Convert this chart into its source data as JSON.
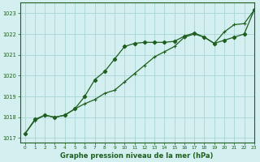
{
  "title": "Graphe pression niveau de la mer (hPa)",
  "background_color": "#d4efef",
  "grid_color": "#a8d4d4",
  "line_color": "#1e5e1e",
  "xlim": [
    -0.5,
    23
  ],
  "ylim": [
    1016.8,
    1023.5
  ],
  "yticks": [
    1017,
    1018,
    1019,
    1020,
    1021,
    1022,
    1023
  ],
  "xticks": [
    0,
    1,
    2,
    3,
    4,
    5,
    6,
    7,
    8,
    9,
    10,
    11,
    12,
    13,
    14,
    15,
    16,
    17,
    18,
    19,
    20,
    21,
    22,
    23
  ],
  "line1_x": [
    0,
    1,
    2,
    3,
    4,
    5,
    6,
    7,
    8,
    9,
    10,
    11,
    12,
    13,
    14,
    15,
    16,
    17,
    18,
    19,
    20,
    21,
    22,
    23
  ],
  "line1_y": [
    1017.2,
    1017.9,
    1018.1,
    1018.0,
    1018.1,
    1018.4,
    1019.0,
    1019.8,
    1020.2,
    1020.8,
    1021.4,
    1021.55,
    1021.6,
    1021.6,
    1021.6,
    1021.65,
    1021.9,
    1022.05,
    1021.85,
    1021.55,
    1021.7,
    1021.85,
    1022.0,
    1023.15
  ],
  "line2_x": [
    0,
    1,
    2,
    3,
    4,
    5,
    6,
    7,
    8,
    9,
    10,
    11,
    12,
    13,
    14,
    15,
    16,
    17,
    18,
    19,
    20,
    21,
    22,
    23
  ],
  "line2_y": [
    1017.2,
    1017.85,
    1018.1,
    1018.0,
    1018.1,
    1018.4,
    1018.65,
    1018.85,
    1019.15,
    1019.3,
    1019.7,
    1020.1,
    1020.5,
    1020.9,
    1021.15,
    1021.4,
    1021.85,
    1022.0,
    1021.85,
    1021.55,
    1022.1,
    1022.45,
    1022.5,
    1023.15
  ]
}
